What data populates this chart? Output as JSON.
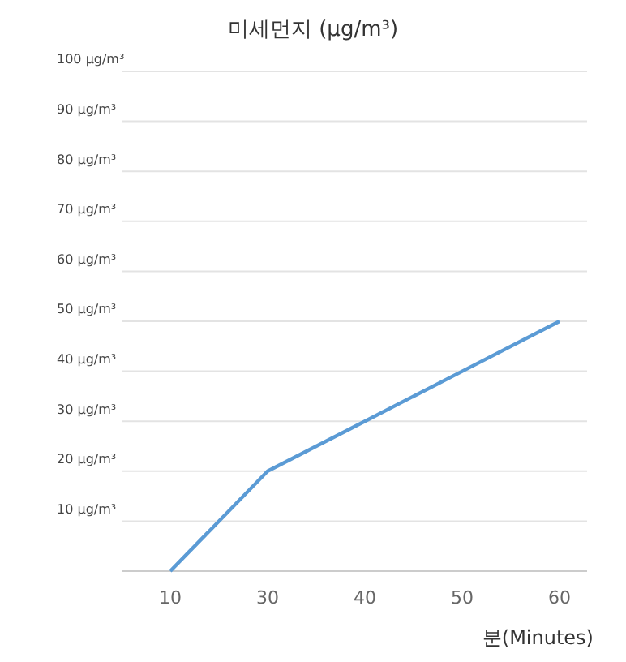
{
  "chart_data": {
    "type": "line",
    "title": "미세먼지 (μg/m³)",
    "xlabel": "분(Minutes)",
    "categories": [
      "10",
      "30",
      "40",
      "50",
      "60"
    ],
    "series": [
      {
        "color": "#5b9bd5",
        "values": [
          0,
          20,
          30,
          40,
          50
        ]
      }
    ],
    "ylim": [
      0,
      100
    ],
    "yticks": [
      {
        "value": 10,
        "label": "10 μg/m³"
      },
      {
        "value": 20,
        "label": "20 μg/m³"
      },
      {
        "value": 30,
        "label": "30 μg/m³"
      },
      {
        "value": 40,
        "label": "40 μg/m³"
      },
      {
        "value": 50,
        "label": "50 μg/m³"
      },
      {
        "value": 60,
        "label": "60 μg/m³"
      },
      {
        "value": 70,
        "label": "70 μg/m³"
      },
      {
        "value": 80,
        "label": "80 μg/m³"
      },
      {
        "value": 90,
        "label": "90 μg/m³"
      },
      {
        "value": 100,
        "label": "100 μg/m³"
      }
    ],
    "grid": "y",
    "marker": "none",
    "line_style": "solid"
  }
}
